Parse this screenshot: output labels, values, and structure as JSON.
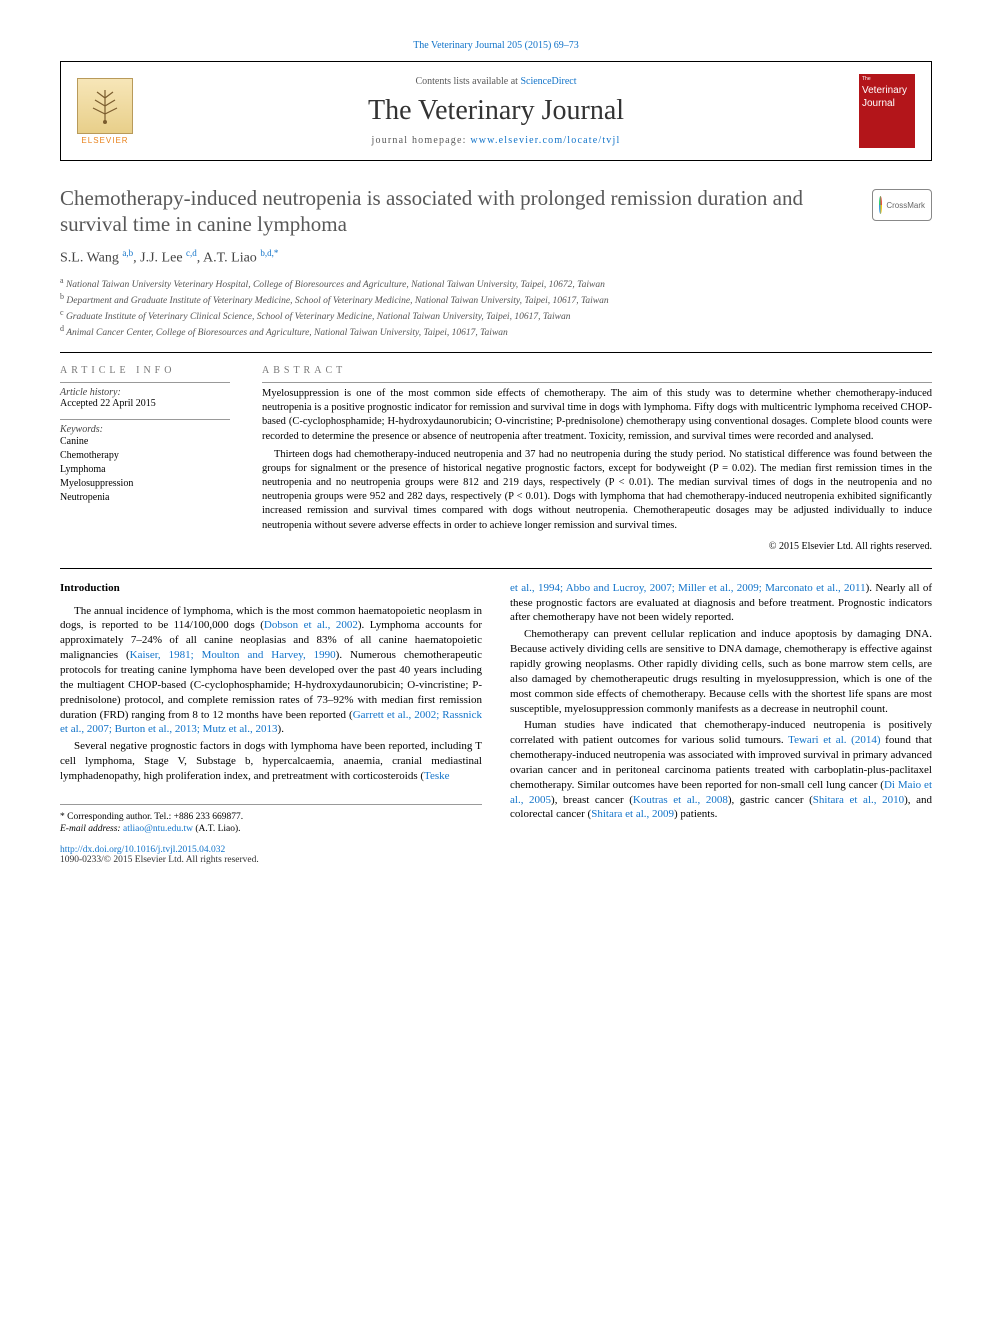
{
  "header": {
    "citation": "The Veterinary Journal 205 (2015) 69–73",
    "contents_prefix": "Contents lists available at ",
    "contents_link": "ScienceDirect",
    "journal_name": "The Veterinary Journal",
    "homepage_prefix": "journal homepage: ",
    "homepage_url": "www.elsevier.com/locate/tvjl",
    "publisher": "ELSEVIER",
    "cover_line1": "The",
    "cover_line2": "Veterinary",
    "cover_line3": "Journal",
    "crossmark": "CrossMark"
  },
  "article": {
    "title": "Chemotherapy-induced neutropenia is associated with prolonged remission duration and survival time in canine lymphoma",
    "authors_html": "S.L. Wang <sup>a,b</sup>, J.J. Lee <sup>c,d</sup>, A.T. Liao <sup>b,d,*</sup>",
    "affiliations": [
      "a National Taiwan University Veterinary Hospital, College of Bioresources and Agriculture, National Taiwan University, Taipei, 10672, Taiwan",
      "b Department and Graduate Institute of Veterinary Medicine, School of Veterinary Medicine, National Taiwan University, Taipei, 10617, Taiwan",
      "c Graduate Institute of Veterinary Clinical Science, School of Veterinary Medicine, National Taiwan University, Taipei, 10617, Taiwan",
      "d Animal Cancer Center, College of Bioresources and Agriculture, National Taiwan University, Taipei, 10617, Taiwan"
    ]
  },
  "info": {
    "header": "ARTICLE INFO",
    "history_label": "Article history:",
    "accepted": "Accepted 22 April 2015",
    "keywords_label": "Keywords:",
    "keywords": [
      "Canine",
      "Chemotherapy",
      "Lymphoma",
      "Myelosuppression",
      "Neutropenia"
    ]
  },
  "abstract": {
    "header": "ABSTRACT",
    "p1": "Myelosuppression is one of the most common side effects of chemotherapy. The aim of this study was to determine whether chemotherapy-induced neutropenia is a positive prognostic indicator for remission and survival time in dogs with lymphoma. Fifty dogs with multicentric lymphoma received CHOP-based (C-cyclophosphamide; H-hydroxydaunorubicin; O-vincristine; P-prednisolone) chemotherapy using conventional dosages. Complete blood counts were recorded to determine the presence or absence of neutropenia after treatment. Toxicity, remission, and survival times were recorded and analysed.",
    "p2": "Thirteen dogs had chemotherapy-induced neutropenia and 37 had no neutropenia during the study period. No statistical difference was found between the groups for signalment or the presence of historical negative prognostic factors, except for bodyweight (P = 0.02). The median first remission times in the neutropenia and no neutropenia groups were 812 and 219 days, respectively (P < 0.01). The median survival times of dogs in the neutropenia and no neutropenia groups were 952 and 282 days, respectively (P < 0.01). Dogs with lymphoma that had chemotherapy-induced neutropenia exhibited significantly increased remission and survival times compared with dogs without neutropenia. Chemotherapeutic dosages may be adjusted individually to induce neutropenia without severe adverse effects in order to achieve longer remission and survival times.",
    "copyright": "© 2015 Elsevier Ltd. All rights reserved."
  },
  "body": {
    "intro_title": "Introduction",
    "col1": {
      "p1a": "The annual incidence of lymphoma, which is the most common haematopoietic neoplasm in dogs, is reported to be 114/100,000 dogs (",
      "c1": "Dobson et al., 2002",
      "p1b": "). Lymphoma accounts for approximately 7–24% of all canine neoplasias and 83% of all canine haematopoietic malignancies (",
      "c2": "Kaiser, 1981; Moulton and Harvey, 1990",
      "p1c": "). Numerous chemotherapeutic protocols for treating canine lymphoma have been developed over the past 40 years including the multiagent CHOP-based (C-cyclophosphamide; H-hydroxydaunorubicin; O-vincristine; P-prednisolone) protocol, and complete remission rates of 73–92% with median first remission duration (FRD) ranging from 8 to 12 months have been reported (",
      "c3": "Garrett et al., 2002; Rassnick et al., 2007; Burton et al., 2013; Mutz et al., 2013",
      "p1d": ").",
      "p2a": "Several negative prognostic factors in dogs with lymphoma have been reported, including T cell lymphoma, Stage V, Substage b, hypercalcaemia, anaemia, cranial mediastinal lymphadenopathy, high proliferation index, and pretreatment with corticosteroids (",
      "c4": "Teske"
    },
    "col2": {
      "c4cont": "et al., 1994; Abbo and Lucroy, 2007; Miller et al., 2009; Marconato et al., 2011",
      "p1a": "). Nearly all of these prognostic factors are evaluated at diagnosis and before treatment. Prognostic indicators after chemotherapy have not been widely reported.",
      "p2": "Chemotherapy can prevent cellular replication and induce apoptosis by damaging DNA. Because actively dividing cells are sensitive to DNA damage, chemotherapy is effective against rapidly growing neoplasms. Other rapidly dividing cells, such as bone marrow stem cells, are also damaged by chemotherapeutic drugs resulting in myelosuppression, which is one of the most common side effects of chemotherapy. Because cells with the shortest life spans are most susceptible, myelosuppression commonly manifests as a decrease in neutrophil count.",
      "p3a": "Human studies have indicated that chemotherapy-induced neutropenia is positively correlated with patient outcomes for various solid tumours. ",
      "c5": "Tewari et al. (2014)",
      "p3b": " found that chemotherapy-induced neutropenia was associated with improved survival in primary advanced ovarian cancer and in peritoneal carcinoma patients treated with carboplatin-plus-paclitaxel chemotherapy. Similar outcomes have been reported for non-small cell lung cancer (",
      "c6": "Di Maio et al., 2005",
      "p3c": "), breast cancer (",
      "c7": "Koutras et al., 2008",
      "p3d": "), gastric cancer (",
      "c8": "Shitara et al., 2010",
      "p3e": "), and colorectal cancer (",
      "c9": "Shitara et al., 2009",
      "p3f": ") patients."
    }
  },
  "footer": {
    "corr_label": "* Corresponding author. Tel.: +886 233 669877.",
    "email_label": "E-mail address:",
    "email": "atliao@ntu.edu.tw",
    "email_name": "(A.T. Liao).",
    "doi": "http://dx.doi.org/10.1016/j.tvjl.2015.04.032",
    "issn": "1090-0233/© 2015 Elsevier Ltd. All rights reserved."
  },
  "colors": {
    "link": "#1173c9",
    "brand_orange": "#e8831e",
    "cover_red": "#b3151a",
    "text": "#000000"
  }
}
